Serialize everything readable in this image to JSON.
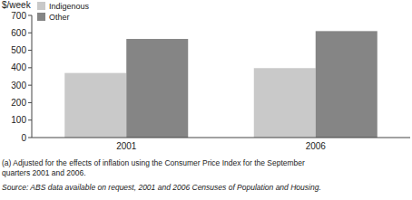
{
  "chart_data": {
    "type": "bar",
    "y_label": "$/week",
    "categories": [
      "2001",
      "2006"
    ],
    "series": [
      {
        "name": "Indigenous",
        "color": "#c9c9c9",
        "values": [
          370,
          398
        ]
      },
      {
        "name": "Other",
        "color": "#858585",
        "values": [
          565,
          610
        ]
      }
    ],
    "ylim": [
      0,
      700
    ],
    "yticks": [
      0,
      100,
      200,
      300,
      400,
      500,
      600,
      700
    ],
    "grid": false,
    "legend": "top-left",
    "notes": [
      "(a) Adjusted for the effects of inflation using the Consumer Price Index for the September",
      "quarters 2001 and 2006."
    ],
    "source": "Source: ABS data available on request, 2001 and 2006 Censuses of Population and Housing."
  }
}
